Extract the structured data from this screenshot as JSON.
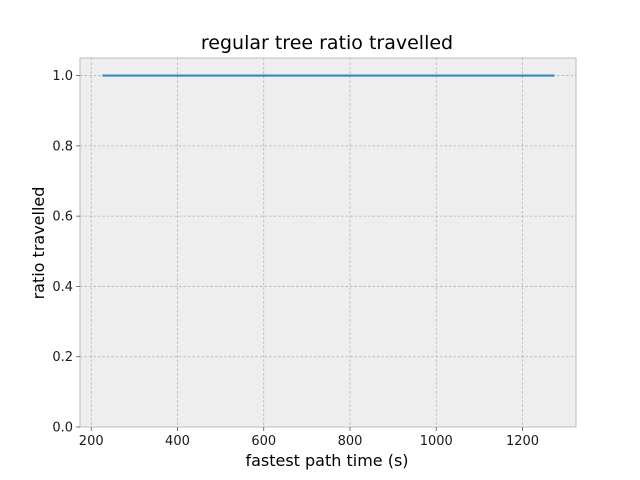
{
  "chart_data": {
    "type": "line",
    "title": "regular tree ratio travelled",
    "xlabel": "fastest path time (s)",
    "ylabel": "ratio travelled",
    "xlim": [
      174,
      1324
    ],
    "ylim": [
      0,
      1.05
    ],
    "xticks": [
      200,
      400,
      600,
      800,
      1000,
      1200
    ],
    "xtick_labels": [
      "200",
      "400",
      "600",
      "800",
      "1000",
      "1200"
    ],
    "yticks": [
      0.0,
      0.2,
      0.4,
      0.6,
      0.8,
      1.0
    ],
    "ytick_labels": [
      "0.0",
      "0.2",
      "0.4",
      "0.6",
      "0.8",
      "1.0"
    ],
    "grid": true,
    "series": [
      {
        "x": [
          226,
          1274
        ],
        "y": [
          1.0,
          1.0
        ],
        "color": "#348abd"
      }
    ]
  },
  "colors": {
    "plot_background": "#eeeeee",
    "grid": "#b2b2b2",
    "axis_edge": "#bcbcbc",
    "line": "#348abd"
  }
}
